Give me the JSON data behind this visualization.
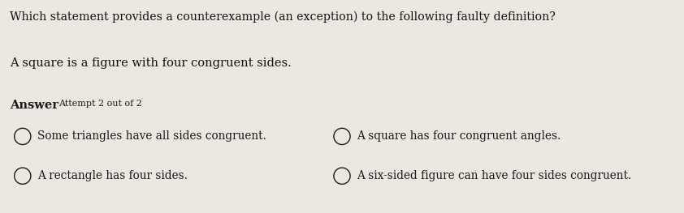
{
  "bg_top": "#ece8e1",
  "bg_bottom": "#ddd9d2",
  "question_line1": "Which statement provides a counterexample (an exception) to the following faulty definition?",
  "question_line2": "A square is a figure with four congruent sides.",
  "answer_label": "Answer",
  "attempt_label": "Attempt 2 out of 2",
  "options": [
    "Some triangles have all sides congruent.",
    "A rectangle has four sides.",
    "A square has four congruent angles.",
    "A six-sided figure can have four sides congruent."
  ],
  "blue_bar_color": "#2563c7",
  "text_color": "#1a1a1a",
  "q_text_color": "#111111",
  "divider_color": "#c8c4bd"
}
